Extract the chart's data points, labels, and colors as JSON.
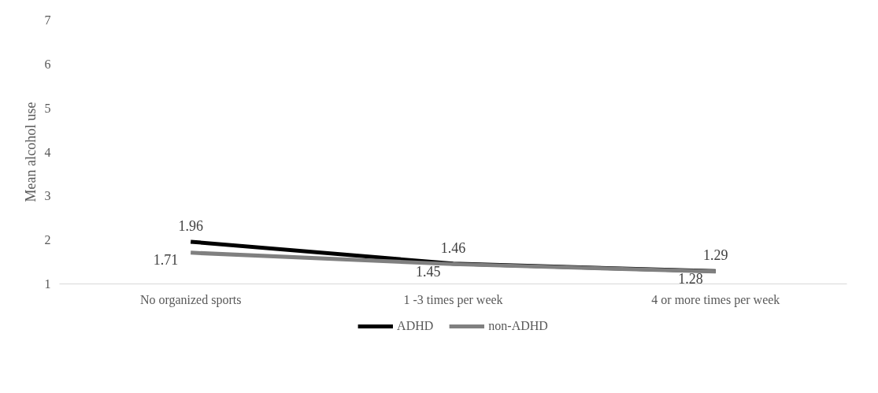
{
  "chart_data": {
    "type": "line",
    "ylabel": "Mean alcohol use",
    "categories": [
      "No organized sports",
      "1 -3 times per week",
      "4 or more times per week"
    ],
    "series": [
      {
        "name": "ADHD",
        "color": "#000000",
        "values": [
          1.96,
          1.46,
          1.29
        ]
      },
      {
        "name": "non-ADHD",
        "color": "#808080",
        "values": [
          1.71,
          1.45,
          1.28
        ]
      }
    ],
    "ylim": [
      1,
      7
    ],
    "yticks": [
      1,
      2,
      3,
      4,
      5,
      6,
      7
    ],
    "grid": false,
    "legend": "bottom",
    "data_labels": true,
    "marker": "none",
    "line_style": "solid"
  }
}
